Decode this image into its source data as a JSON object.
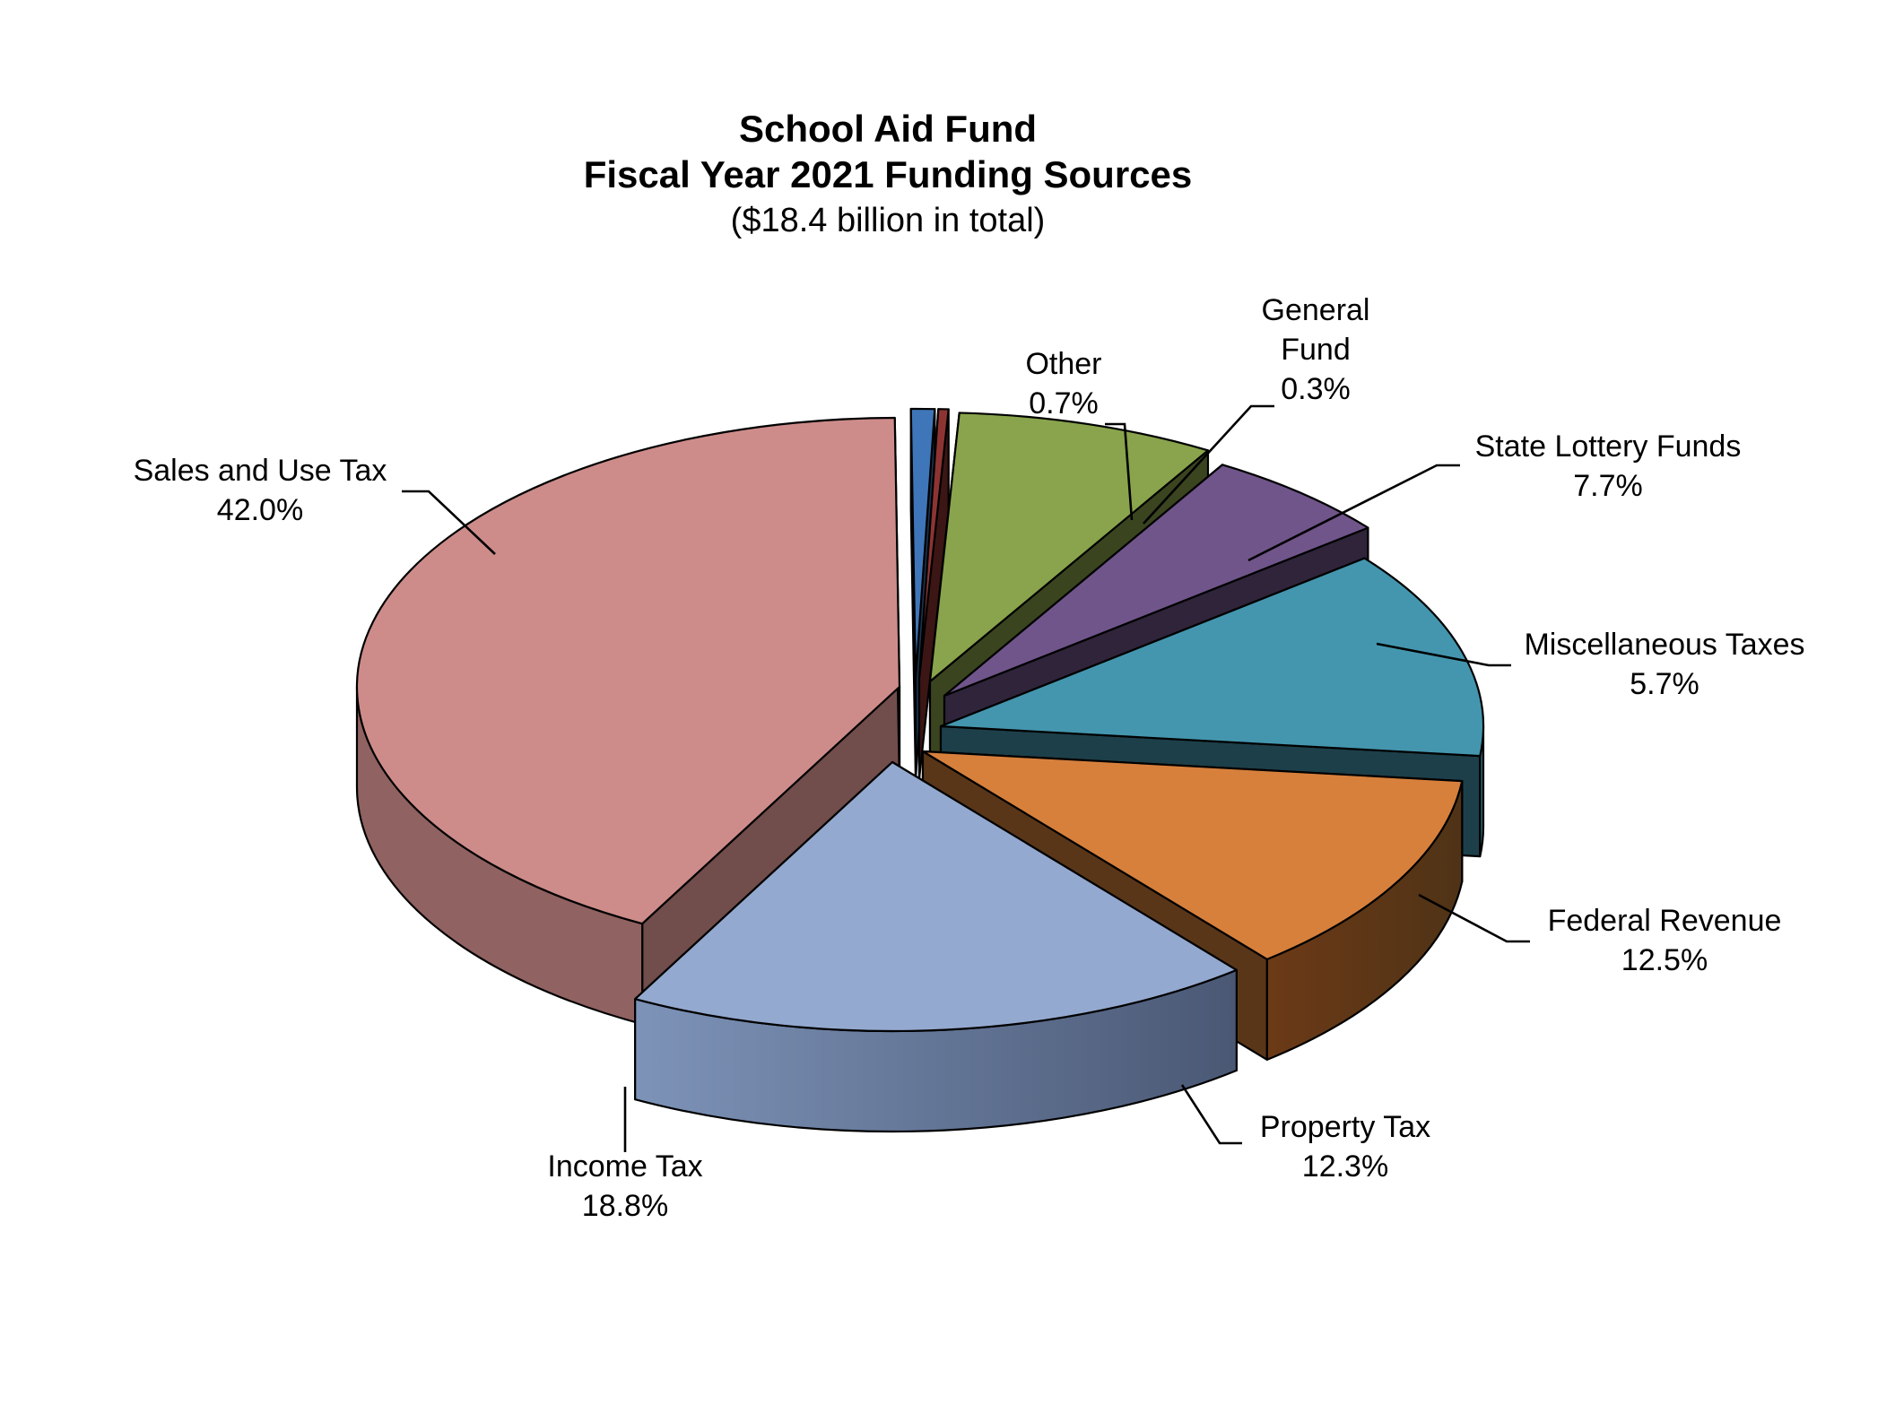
{
  "chart_data": {
    "type": "pie",
    "title": "School Aid Fund",
    "subtitle": "Fiscal Year 2021 Funding Sources",
    "note": "($18.4 billion in total)",
    "slices": [
      {
        "name": "Sales and Use Tax",
        "value": 42.0,
        "label": "42.0%",
        "color": "#cd8c8a"
      },
      {
        "name": "Income Tax",
        "value": 18.8,
        "label": "18.8%",
        "color": "#94a9cf"
      },
      {
        "name": "Property Tax",
        "value": 12.3,
        "label": "12.3%",
        "color": "#d7803c"
      },
      {
        "name": "Federal Revenue",
        "value": 12.5,
        "label": "12.5%",
        "color": "#4496ae"
      },
      {
        "name": "Miscellaneous Taxes",
        "value": 5.7,
        "label": "5.7%",
        "color": "#70558b"
      },
      {
        "name": "State Lottery Funds",
        "value": 7.7,
        "label": "7.7%",
        "color": "#89a44c"
      },
      {
        "name": "General Fund",
        "value": 0.3,
        "label": "0.3%",
        "color": "#8d3433"
      },
      {
        "name": "Other",
        "value": 0.7,
        "label": "0.7%",
        "color": "#3f76b9"
      }
    ],
    "style": "3d-exploded-pie"
  }
}
